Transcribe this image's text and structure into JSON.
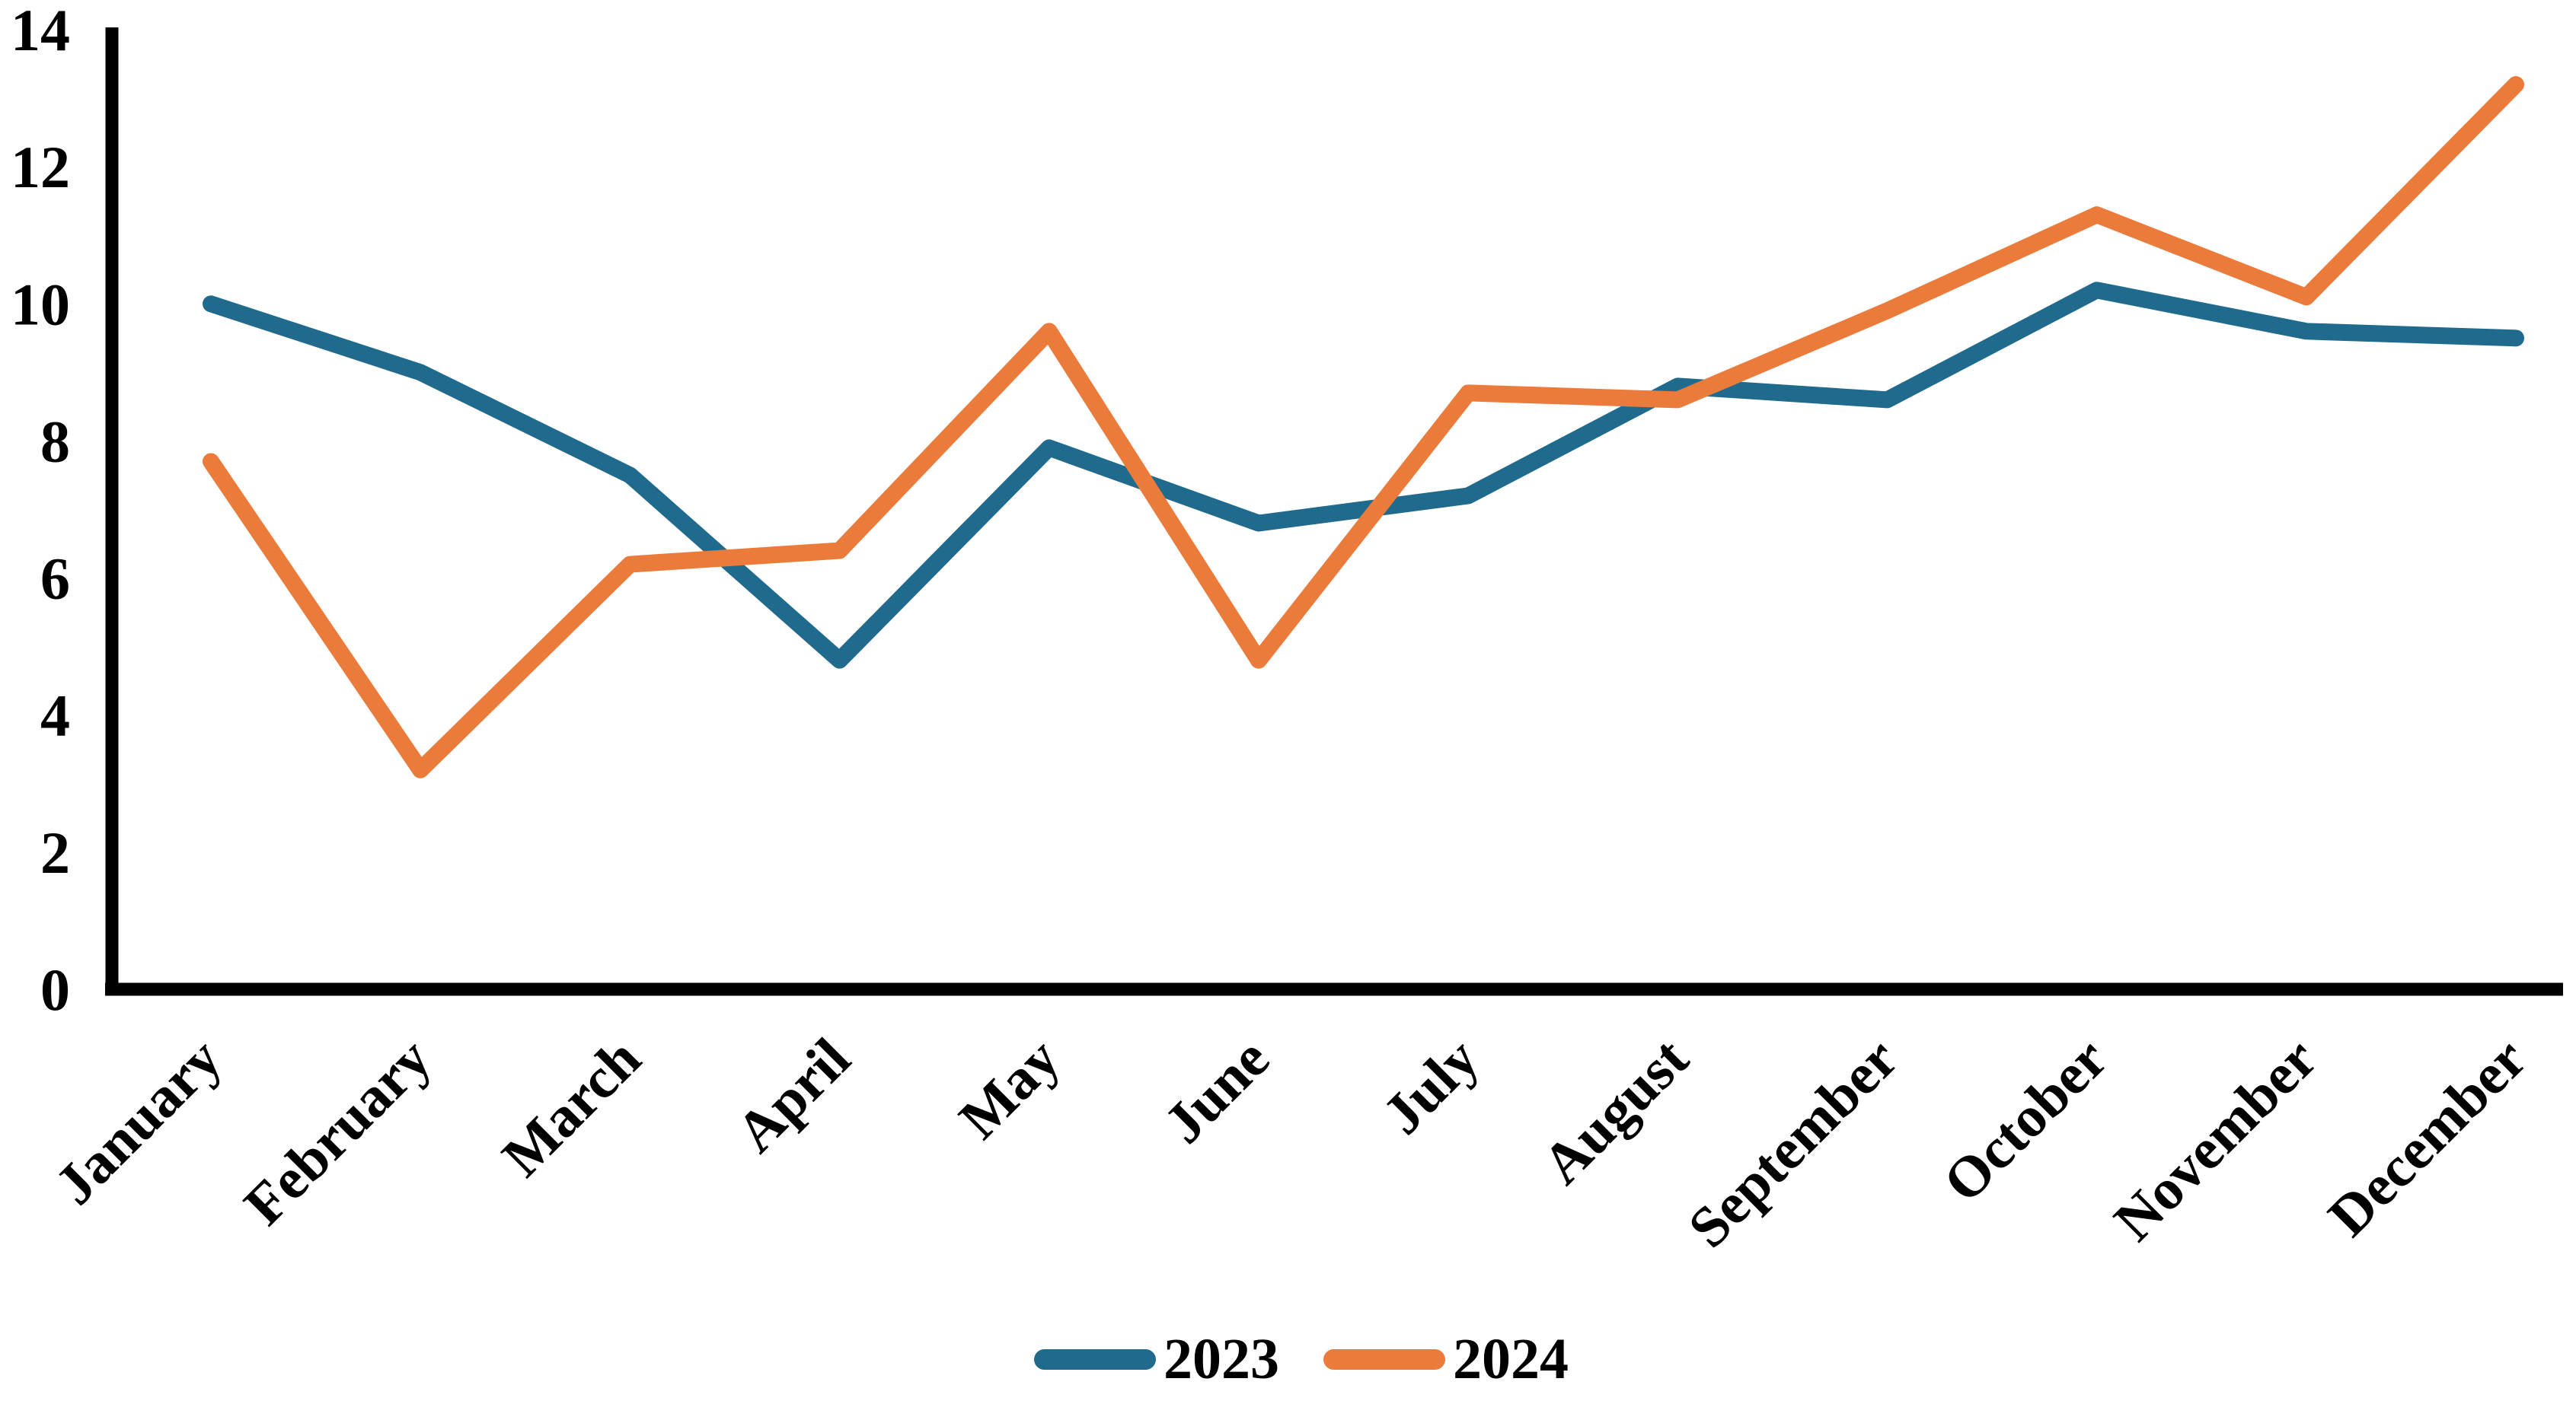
{
  "chart_data": {
    "type": "line",
    "title": "",
    "xlabel": "",
    "ylabel": "",
    "categories": [
      "January",
      "February",
      "March",
      "April",
      "May",
      "June",
      "July",
      "August",
      "September",
      "October",
      "November",
      "December"
    ],
    "series": [
      {
        "name": "2023",
        "color": "#1F6A8D",
        "values": [
          10,
          9,
          7.5,
          4.8,
          7.9,
          6.8,
          7.2,
          8.8,
          8.6,
          10.2,
          9.6,
          9.5
        ]
      },
      {
        "name": "2024",
        "color": "#EB7B3A",
        "values": [
          7.7,
          3.2,
          6.2,
          6.4,
          9.6,
          4.8,
          8.7,
          8.6,
          9.9,
          11.3,
          10.1,
          13.2
        ]
      }
    ],
    "ylim": [
      0,
      14
    ],
    "y_ticks": [
      0,
      2,
      4,
      6,
      8,
      10,
      12,
      14
    ],
    "grid": false,
    "legend_position": "bottom-center",
    "axis_color": "#000000",
    "text_color": "#000000",
    "x_tick_rotation_deg": -45
  }
}
